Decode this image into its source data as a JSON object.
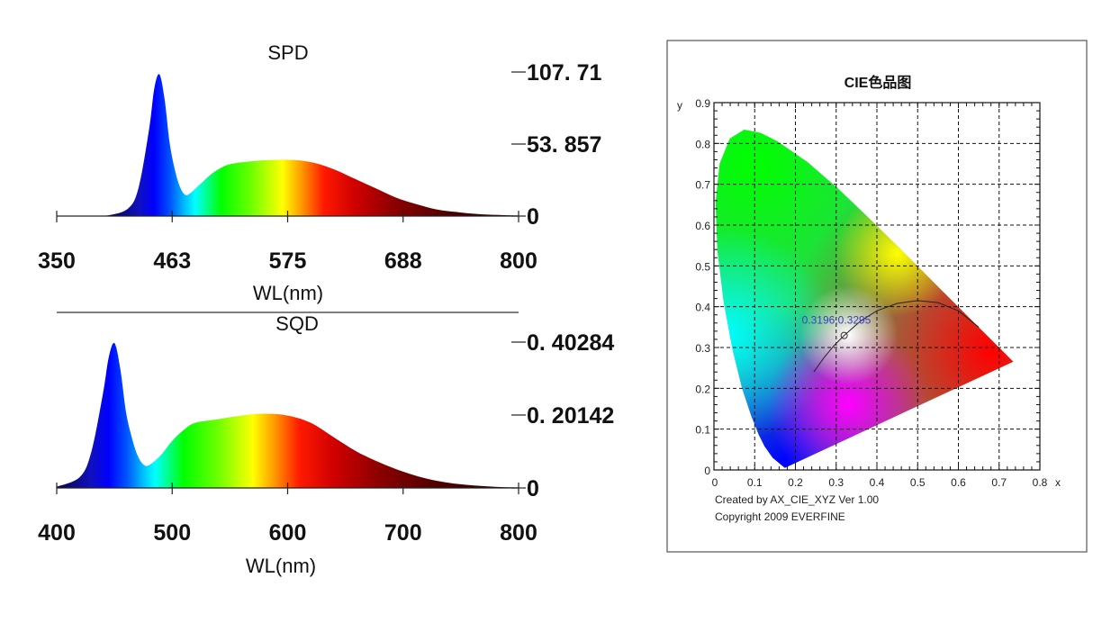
{
  "chart_data": [
    {
      "type": "area",
      "title": "SPD",
      "xlabel": "WL(nm)",
      "xlim": [
        350,
        800
      ],
      "ylim": [
        0,
        107.71
      ],
      "xticks": [
        "350",
        "463",
        "575",
        "688",
        "800"
      ],
      "xtick_values": [
        350,
        462.5,
        575,
        687.5,
        800
      ],
      "yticks": [
        "107. 71",
        "53. 857",
        "0"
      ],
      "ytick_values": [
        107.71,
        53.857,
        0
      ],
      "x": [
        350,
        380,
        400,
        420,
        430,
        440,
        445,
        450,
        455,
        460,
        465,
        470,
        475,
        480,
        490,
        500,
        510,
        520,
        540,
        560,
        580,
        600,
        620,
        640,
        660,
        680,
        700,
        720,
        740,
        760,
        780,
        800
      ],
      "y": [
        0,
        0,
        0.5,
        6,
        22,
        65,
        95,
        106,
        88,
        55,
        35,
        22,
        16,
        17,
        24,
        31,
        36,
        39,
        41,
        42,
        42,
        40,
        35,
        28,
        21,
        14,
        9,
        5,
        3,
        1.5,
        0.8,
        0.3
      ],
      "fill": "spectral-gradient"
    },
    {
      "type": "area",
      "title": "SQD",
      "xlabel": "WL(nm)",
      "xlim": [
        400,
        800
      ],
      "ylim": [
        0,
        0.40284
      ],
      "xticks": [
        "400",
        "500",
        "600",
        "700",
        "800"
      ],
      "xtick_values": [
        400,
        500,
        600,
        700,
        800
      ],
      "yticks": [
        "0. 40284",
        "0. 20142",
        "0"
      ],
      "ytick_values": [
        0.40284,
        0.20142,
        0
      ],
      "x": [
        400,
        420,
        430,
        440,
        445,
        450,
        455,
        460,
        465,
        470,
        475,
        480,
        490,
        500,
        510,
        520,
        540,
        560,
        580,
        600,
        620,
        640,
        660,
        680,
        700,
        720,
        740,
        760,
        780,
        800
      ],
      "y": [
        0.003,
        0.03,
        0.1,
        0.26,
        0.36,
        0.4,
        0.33,
        0.21,
        0.14,
        0.09,
        0.065,
        0.063,
        0.09,
        0.13,
        0.16,
        0.18,
        0.19,
        0.2,
        0.205,
        0.2,
        0.18,
        0.14,
        0.1,
        0.07,
        0.045,
        0.026,
        0.014,
        0.007,
        0.003,
        0.001
      ],
      "fill": "spectral-gradient"
    },
    {
      "type": "scatter",
      "title": "CIE色品图",
      "xlabel": "x",
      "ylabel": "y",
      "xlim": [
        0,
        0.8
      ],
      "ylim": [
        0,
        0.9
      ],
      "grid": true,
      "xticks": [
        "0",
        "0.1",
        "0.2",
        "0.3",
        "0.4",
        "0.5",
        "0.6",
        "0.7",
        "0.8"
      ],
      "yticks": [
        "0",
        "0.1",
        "0.2",
        "0.3",
        "0.4",
        "0.5",
        "0.6",
        "0.7",
        "0.8",
        "0.9"
      ],
      "point": {
        "x": 0.3196,
        "y": 0.3295,
        "label": "0.3196,0.3295"
      },
      "spectral_locus": [
        [
          0.1741,
          0.005
        ],
        [
          0.144,
          0.0297
        ],
        [
          0.1241,
          0.0578
        ],
        [
          0.1096,
          0.0868
        ],
        [
          0.0913,
          0.1327
        ],
        [
          0.0687,
          0.2007
        ],
        [
          0.0454,
          0.295
        ],
        [
          0.0235,
          0.4127
        ],
        [
          0.0082,
          0.5384
        ],
        [
          0.0039,
          0.6548
        ],
        [
          0.0139,
          0.7502
        ],
        [
          0.0389,
          0.812
        ],
        [
          0.0743,
          0.8338
        ],
        [
          0.1142,
          0.8262
        ],
        [
          0.1547,
          0.8059
        ],
        [
          0.2296,
          0.7543
        ],
        [
          0.3016,
          0.6923
        ],
        [
          0.3731,
          0.6245
        ],
        [
          0.4441,
          0.5547
        ],
        [
          0.5125,
          0.4866
        ],
        [
          0.5752,
          0.4242
        ],
        [
          0.627,
          0.3725
        ],
        [
          0.6915,
          0.3083
        ],
        [
          0.719,
          0.2809
        ],
        [
          0.7347,
          0.2653
        ]
      ],
      "planckian_locus": [
        [
          0.245,
          0.24
        ],
        [
          0.27,
          0.275
        ],
        [
          0.295,
          0.305
        ],
        [
          0.3196,
          0.3295
        ],
        [
          0.36,
          0.365
        ],
        [
          0.4,
          0.39
        ],
        [
          0.45,
          0.408
        ],
        [
          0.5,
          0.415
        ],
        [
          0.55,
          0.41
        ],
        [
          0.6,
          0.39
        ],
        [
          0.65,
          0.35
        ]
      ],
      "footer": [
        "Created by AX_CIE_XYZ Ver 1.00",
        "Copyright 2009 EVERFINE"
      ]
    }
  ],
  "colors": {
    "point_label": "#3a3ac8",
    "frame": "#555555"
  }
}
